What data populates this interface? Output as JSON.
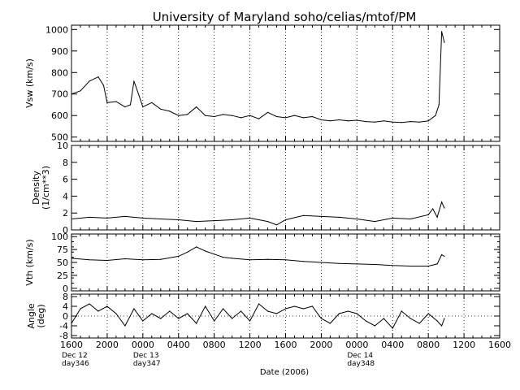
{
  "title": "University of Maryland  soho/celias/mtof/PM",
  "xlabel": "Date (2006)",
  "x_tick_labels": [
    "1600",
    "2000",
    "0000",
    "0400",
    "0800",
    "1200",
    "1600",
    "2000",
    "0000",
    "0400",
    "0800",
    "1200",
    "1600"
  ],
  "date_labels": [
    {
      "day": "Dec 12",
      "doy": "day346"
    },
    {
      "day": "Dec 13",
      "doy": "day347"
    },
    {
      "day": "Dec 14",
      "doy": "day348"
    }
  ],
  "chart_data": [
    {
      "type": "line",
      "ylabel": "Vsw (km/s)",
      "ylim": [
        480,
        1020
      ],
      "yticks": [
        500,
        600,
        700,
        800,
        900,
        1000
      ],
      "grid": "vertical dotted",
      "x_unit": "hours since 2006-12-12 16:00",
      "xlim": [
        0,
        48
      ],
      "series": [
        {
          "points": [
            [
              0,
              700
            ],
            [
              1,
              715
            ],
            [
              2,
              760
            ],
            [
              3,
              780
            ],
            [
              3.6,
              740
            ],
            [
              4,
              660
            ],
            [
              5,
              665
            ],
            [
              6,
              640
            ],
            [
              6.6,
              650
            ],
            [
              7,
              760
            ],
            [
              7.6,
              690
            ],
            [
              8,
              640
            ],
            [
              9,
              660
            ],
            [
              10,
              630
            ],
            [
              11,
              620
            ],
            [
              12,
              600
            ],
            [
              13,
              605
            ],
            [
              14,
              640
            ],
            [
              15,
              600
            ],
            [
              16,
              595
            ],
            [
              17,
              605
            ],
            [
              18,
              600
            ],
            [
              19,
              590
            ],
            [
              20,
              600
            ],
            [
              21,
              585
            ],
            [
              22,
              615
            ],
            [
              23,
              595
            ],
            [
              24,
              590
            ],
            [
              25,
              600
            ],
            [
              26,
              590
            ],
            [
              27,
              595
            ],
            [
              28,
              580
            ],
            [
              29,
              575
            ],
            [
              30,
              580
            ],
            [
              31,
              575
            ],
            [
              32,
              578
            ],
            [
              33,
              572
            ],
            [
              34,
              570
            ],
            [
              35,
              575
            ],
            [
              36,
              570
            ],
            [
              37,
              568
            ],
            [
              38,
              572
            ],
            [
              39,
              570
            ],
            [
              40,
              575
            ],
            [
              40.8,
              600
            ],
            [
              41.2,
              650
            ],
            [
              41.5,
              990
            ],
            [
              41.8,
              940
            ]
          ]
        }
      ]
    },
    {
      "type": "line",
      "ylabel": "Density (1/cm**3)",
      "ylim": [
        0,
        10
      ],
      "yticks": [
        0,
        2,
        4,
        6,
        8,
        10
      ],
      "x_unit": "hours since 2006-12-12 16:00",
      "xlim": [
        0,
        48
      ],
      "series": [
        {
          "points": [
            [
              0,
              1.3
            ],
            [
              2,
              1.5
            ],
            [
              4,
              1.4
            ],
            [
              6,
              1.6
            ],
            [
              8,
              1.4
            ],
            [
              10,
              1.3
            ],
            [
              12,
              1.2
            ],
            [
              14,
              1.0
            ],
            [
              16,
              1.1
            ],
            [
              18,
              1.2
            ],
            [
              20,
              1.4
            ],
            [
              22,
              1.0
            ],
            [
              23,
              0.6
            ],
            [
              24,
              1.2
            ],
            [
              26,
              1.7
            ],
            [
              28,
              1.6
            ],
            [
              30,
              1.5
            ],
            [
              32,
              1.3
            ],
            [
              34,
              1.0
            ],
            [
              36,
              1.4
            ],
            [
              38,
              1.3
            ],
            [
              40,
              1.8
            ],
            [
              40.5,
              2.5
            ],
            [
              41,
              1.5
            ],
            [
              41.5,
              3.3
            ],
            [
              41.8,
              2.6
            ]
          ]
        }
      ]
    },
    {
      "type": "line",
      "ylabel": "Vth (km/s)",
      "ylim": [
        -5,
        105
      ],
      "yticks": [
        0,
        25,
        50,
        75,
        100
      ],
      "minor_yticks": [
        10,
        20,
        30,
        40,
        60,
        70,
        80,
        90
      ],
      "x_unit": "hours since 2006-12-12 16:00",
      "xlim": [
        0,
        48
      ],
      "series": [
        {
          "points": [
            [
              0,
              58
            ],
            [
              2,
              55
            ],
            [
              4,
              54
            ],
            [
              6,
              57
            ],
            [
              8,
              55
            ],
            [
              10,
              56
            ],
            [
              12,
              62
            ],
            [
              13,
              70
            ],
            [
              14,
              80
            ],
            [
              15,
              72
            ],
            [
              16,
              66
            ],
            [
              17,
              60
            ],
            [
              18,
              58
            ],
            [
              20,
              55
            ],
            [
              22,
              56
            ],
            [
              24,
              55
            ],
            [
              26,
              52
            ],
            [
              28,
              50
            ],
            [
              30,
              48
            ],
            [
              32,
              47
            ],
            [
              34,
              46
            ],
            [
              36,
              44
            ],
            [
              38,
              43
            ],
            [
              40,
              43
            ],
            [
              41,
              47
            ],
            [
              41.5,
              65
            ],
            [
              41.8,
              62
            ]
          ]
        }
      ]
    },
    {
      "type": "line",
      "ylabel": "Angle (deg)",
      "ylim": [
        -9,
        9
      ],
      "yticks": [
        -8,
        -4,
        0,
        4,
        8
      ],
      "zero_line": "dotted",
      "x_unit": "hours since 2006-12-12 16:00",
      "xlim": [
        0,
        48
      ],
      "series": [
        {
          "points": [
            [
              0,
              -3
            ],
            [
              1,
              3
            ],
            [
              2,
              5
            ],
            [
              3,
              2
            ],
            [
              4,
              4
            ],
            [
              5,
              1
            ],
            [
              6,
              -4
            ],
            [
              7,
              3
            ],
            [
              8,
              -2
            ],
            [
              9,
              1
            ],
            [
              10,
              -1
            ],
            [
              11,
              2
            ],
            [
              12,
              -1
            ],
            [
              13,
              1
            ],
            [
              14,
              -3
            ],
            [
              15,
              4
            ],
            [
              16,
              -2
            ],
            [
              17,
              3
            ],
            [
              18,
              -1
            ],
            [
              19,
              2
            ],
            [
              20,
              -2
            ],
            [
              21,
              5
            ],
            [
              22,
              2
            ],
            [
              23,
              1
            ],
            [
              24,
              3
            ],
            [
              25,
              4
            ],
            [
              26,
              3
            ],
            [
              27,
              4
            ],
            [
              28,
              -1
            ],
            [
              29,
              -3
            ],
            [
              30,
              1
            ],
            [
              31,
              2
            ],
            [
              32,
              1
            ],
            [
              33,
              -2
            ],
            [
              34,
              -4
            ],
            [
              35,
              -1
            ],
            [
              36,
              -5
            ],
            [
              37,
              2
            ],
            [
              38,
              -1
            ],
            [
              39,
              -3
            ],
            [
              40,
              1
            ],
            [
              41,
              -2
            ],
            [
              41.5,
              -4
            ],
            [
              41.8,
              -1
            ]
          ]
        }
      ]
    }
  ]
}
